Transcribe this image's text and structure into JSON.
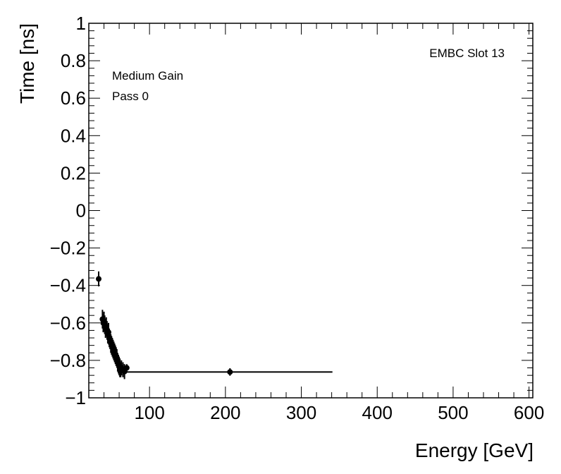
{
  "chart_data": {
    "type": "scatter",
    "xlabel": "Energy [GeV]",
    "ylabel": "Time [ns]",
    "xlim": [
      20,
      605
    ],
    "ylim": [
      -1,
      1
    ],
    "x_ticks": [
      100,
      200,
      300,
      400,
      500,
      600
    ],
    "x_tick_labels": [
      "100",
      "200",
      "300",
      "400",
      "500",
      "600"
    ],
    "y_ticks": [
      -1,
      -0.8,
      -0.6,
      -0.4,
      -0.2,
      0,
      0.2,
      0.4,
      0.6,
      0.8,
      1
    ],
    "y_tick_labels": [
      "−1",
      "−0.8",
      "−0.6",
      "−0.4",
      "−0.2",
      "0",
      "0.2",
      "0.4",
      "0.6",
      "0.8",
      "1"
    ],
    "grid": false,
    "annotations": {
      "top_right": "EMBC Slot 13",
      "line1": "Medium Gain",
      "line2": "Pass 0"
    },
    "series": [
      {
        "marker": "filled-circle",
        "color": "#000000",
        "points": [
          {
            "x": 33,
            "y": -0.365,
            "yerr": 0.04
          },
          {
            "x": 38,
            "y": -0.58,
            "yerr": 0.05
          },
          {
            "x": 39,
            "y": -0.6,
            "yerr": 0.05
          },
          {
            "x": 40,
            "y": -0.59,
            "yerr": 0.05
          },
          {
            "x": 41,
            "y": -0.61,
            "yerr": 0.05
          },
          {
            "x": 42,
            "y": -0.63,
            "yerr": 0.05
          },
          {
            "x": 43,
            "y": -0.62,
            "yerr": 0.05
          },
          {
            "x": 44,
            "y": -0.64,
            "yerr": 0.05
          },
          {
            "x": 45,
            "y": -0.66,
            "yerr": 0.05
          },
          {
            "x": 46,
            "y": -0.65,
            "yerr": 0.05
          },
          {
            "x": 47,
            "y": -0.68,
            "yerr": 0.05
          },
          {
            "x": 48,
            "y": -0.69,
            "yerr": 0.05
          },
          {
            "x": 49,
            "y": -0.71,
            "yerr": 0.05
          },
          {
            "x": 50,
            "y": -0.72,
            "yerr": 0.05
          },
          {
            "x": 51,
            "y": -0.73,
            "yerr": 0.05
          },
          {
            "x": 52,
            "y": -0.74,
            "yerr": 0.05
          },
          {
            "x": 53,
            "y": -0.75,
            "yerr": 0.05
          },
          {
            "x": 54,
            "y": -0.76,
            "yerr": 0.05
          },
          {
            "x": 55,
            "y": -0.77,
            "yerr": 0.05
          },
          {
            "x": 56,
            "y": -0.78,
            "yerr": 0.05
          },
          {
            "x": 57,
            "y": -0.79,
            "yerr": 0.05
          },
          {
            "x": 58,
            "y": -0.81,
            "yerr": 0.05
          },
          {
            "x": 59,
            "y": -0.82,
            "yerr": 0.05
          },
          {
            "x": 60,
            "y": -0.83,
            "yerr": 0.05
          },
          {
            "x": 61,
            "y": -0.84,
            "yerr": 0.05
          },
          {
            "x": 62,
            "y": -0.85,
            "yerr": 0.04
          },
          {
            "x": 63,
            "y": -0.84,
            "yerr": 0.04
          },
          {
            "x": 65,
            "y": -0.85,
            "yerr": 0.04
          },
          {
            "x": 67,
            "y": -0.86,
            "yerr": 0.04
          },
          {
            "x": 70,
            "y": -0.84,
            "yerr": 0.02
          },
          {
            "x": 206,
            "y": -0.862,
            "yerr": 0.02,
            "xmin": 65,
            "xmax": 341
          }
        ]
      }
    ]
  }
}
